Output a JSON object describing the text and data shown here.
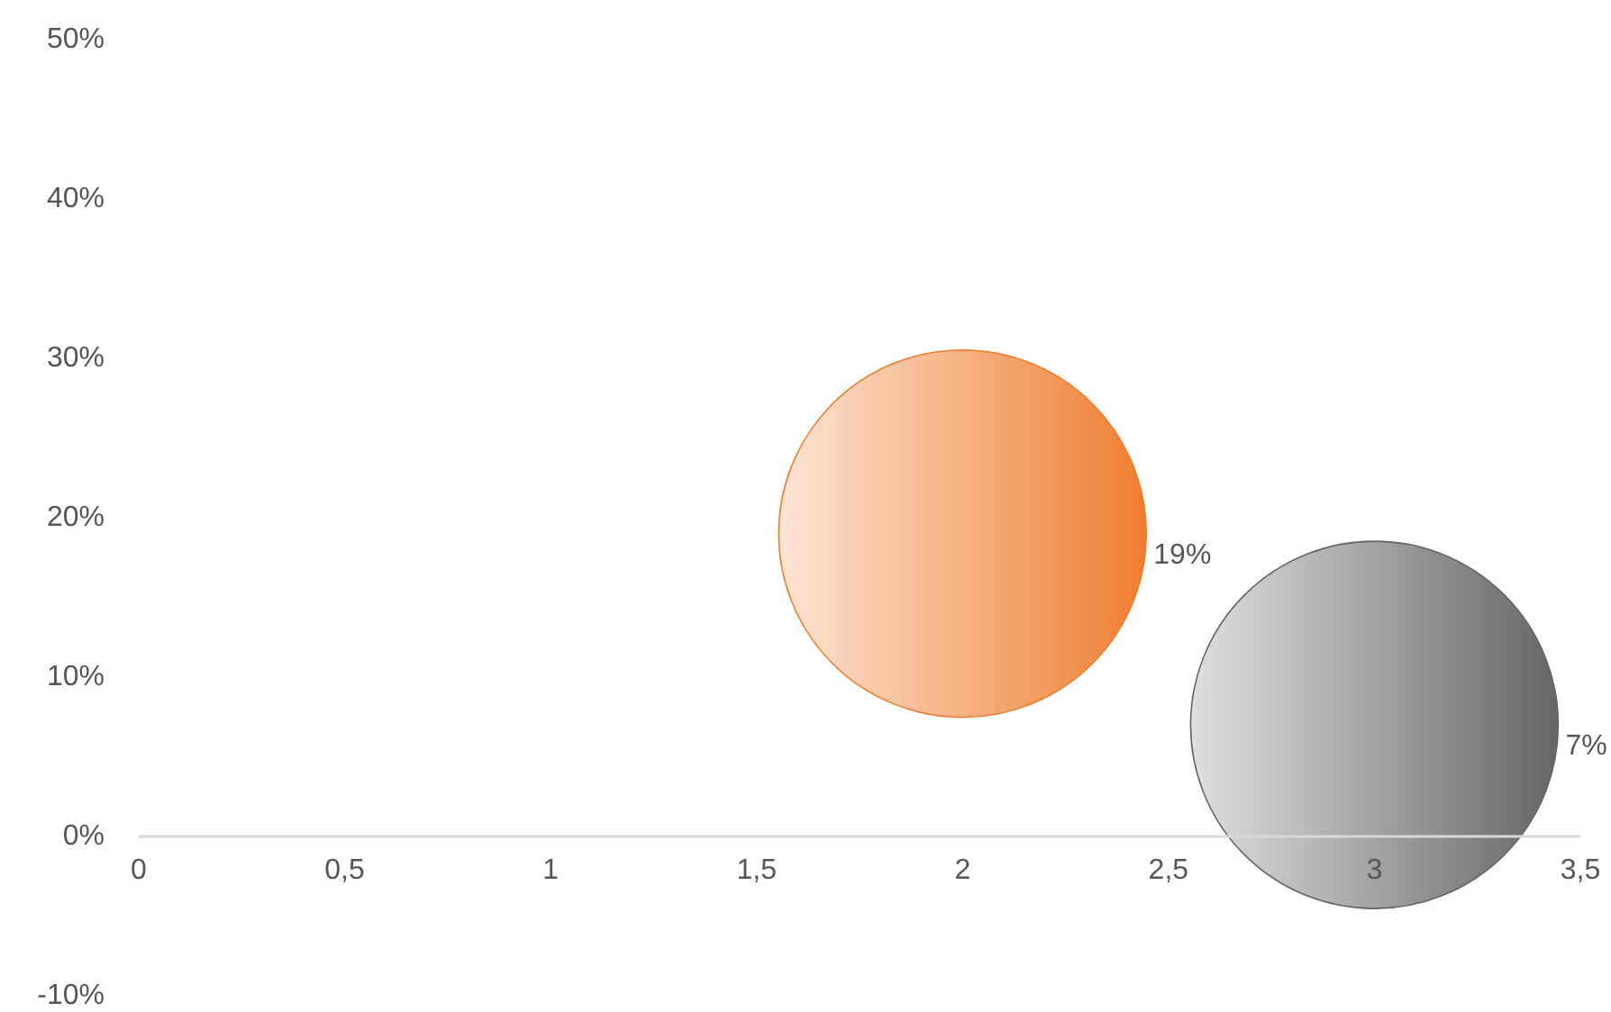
{
  "chart_data": {
    "type": "bubble",
    "xlim": [
      0,
      3.5
    ],
    "xticks": [
      0,
      {
        "value": 0.5,
        "label": "0,5"
      },
      1,
      {
        "value": 1.5,
        "label": "1,5"
      },
      2,
      {
        "value": 2.5,
        "label": "2,5"
      },
      3,
      {
        "value": 3.5,
        "label": "3,5"
      }
    ],
    "ylim": [
      -10,
      50
    ],
    "yticks": [
      {
        "value": -10,
        "label": "-10%"
      },
      {
        "value": 0,
        "label": "0%"
      },
      {
        "value": 10,
        "label": "10%"
      },
      {
        "value": 20,
        "label": "20%"
      },
      {
        "value": 30,
        "label": "30%"
      },
      {
        "value": 40,
        "label": "40%"
      },
      {
        "value": 50,
        "label": "50%"
      }
    ],
    "grid": false,
    "series": [
      {
        "color": "#ee7d2f",
        "x": [
          2
        ],
        "values": [
          19
        ],
        "sizes": [
          1
        ],
        "value_labels": [
          "19%"
        ]
      },
      {
        "color": "#676464",
        "x": [
          3
        ],
        "values": [
          7
        ],
        "sizes": [
          1
        ],
        "value_labels": [
          "7%"
        ]
      }
    ]
  }
}
